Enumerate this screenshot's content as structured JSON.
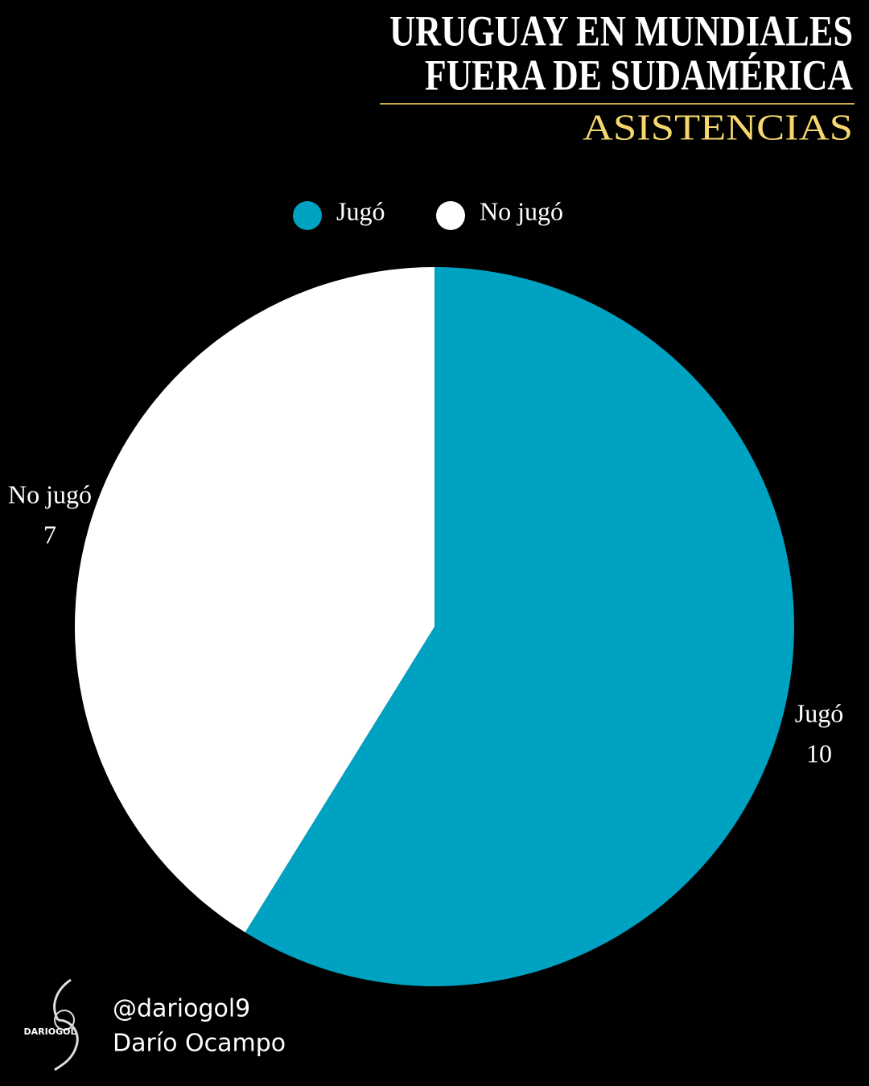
{
  "chart_data": {
    "type": "pie",
    "title": [
      "URUGUAY EN MUNDIALES",
      "FUERA DE SUDAMÉRICA"
    ],
    "subtitle": "ASISTENCIAS",
    "categories": [
      "Jugó",
      "No jugó"
    ],
    "values": [
      10,
      7
    ],
    "colors": [
      "#00a2c2",
      "#ffffff"
    ],
    "legend": "top"
  },
  "footer": {
    "logo": "DARIOGOL",
    "handle": "@dariogol9",
    "author": "Darío Ocampo"
  }
}
